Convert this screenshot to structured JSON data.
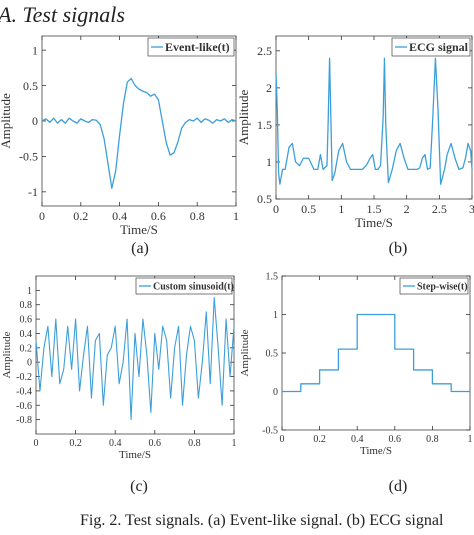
{
  "section_title": "A.  Test signals",
  "caption": "Fig. 2.   Test signals. (a) Event-like signal. (b) ECG signal",
  "colors": {
    "line": "#3d9fd9",
    "axis": "#333333",
    "box": "#444444"
  },
  "panels": [
    {
      "label": "(a)"
    },
    {
      "label": "(b)"
    },
    {
      "label": "(c)"
    },
    {
      "label": "(d)"
    }
  ],
  "chart_data": [
    {
      "type": "line",
      "xlabel": "Time/S",
      "ylabel": "Amplitude",
      "xlim": [
        0,
        1
      ],
      "ylim": [
        -1.2,
        1.2
      ],
      "xticks": [
        "0",
        "0.2",
        "0.4",
        "0.6",
        "0.8",
        "1"
      ],
      "yticks": [
        "-1",
        "-0.5",
        "0",
        "0.5",
        "1"
      ],
      "legend": {
        "position": "top-right",
        "entries": [
          "Event-like(t)"
        ]
      },
      "series": [
        {
          "name": "Event-like(t)",
          "x": [
            0,
            0.02,
            0.04,
            0.06,
            0.08,
            0.1,
            0.12,
            0.14,
            0.16,
            0.18,
            0.2,
            0.22,
            0.24,
            0.26,
            0.28,
            0.3,
            0.32,
            0.34,
            0.36,
            0.38,
            0.4,
            0.42,
            0.44,
            0.46,
            0.48,
            0.5,
            0.52,
            0.54,
            0.56,
            0.58,
            0.6,
            0.62,
            0.64,
            0.66,
            0.68,
            0.7,
            0.72,
            0.74,
            0.76,
            0.78,
            0.8,
            0.82,
            0.84,
            0.86,
            0.88,
            0.9,
            0.92,
            0.94,
            0.96,
            0.98,
            1.0
          ],
          "y": [
            0.0,
            0.03,
            -0.02,
            0.04,
            -0.03,
            0.02,
            -0.03,
            0.04,
            0.0,
            -0.03,
            0.03,
            0.0,
            -0.02,
            0.02,
            0.01,
            -0.05,
            -0.25,
            -0.6,
            -0.95,
            -0.7,
            -0.2,
            0.25,
            0.55,
            0.6,
            0.5,
            0.45,
            0.42,
            0.4,
            0.35,
            0.38,
            0.3,
            0.0,
            -0.3,
            -0.48,
            -0.45,
            -0.3,
            -0.1,
            -0.02,
            0.02,
            0.0,
            0.04,
            -0.02,
            0.03,
            0.01,
            -0.03,
            0.02,
            0.0,
            0.03,
            -0.02,
            0.02,
            0.0
          ]
        }
      ]
    },
    {
      "type": "line",
      "xlabel": "Time/S",
      "ylabel": "Amplitude",
      "xlim": [
        0,
        3
      ],
      "ylim": [
        0.5,
        2.7
      ],
      "xticks": [
        "0",
        "0.5",
        "1",
        "1.5",
        "2",
        "2.5",
        "3"
      ],
      "yticks": [
        "0.5",
        "1",
        "1.5",
        "2",
        "2.5"
      ],
      "legend": {
        "position": "top-right",
        "entries": [
          "ECG signal"
        ]
      },
      "series": [
        {
          "name": "ECG signal",
          "x": [
            0,
            0.02,
            0.04,
            0.06,
            0.1,
            0.14,
            0.2,
            0.25,
            0.3,
            0.36,
            0.42,
            0.5,
            0.58,
            0.64,
            0.68,
            0.72,
            0.78,
            0.8,
            0.82,
            0.84,
            0.86,
            0.9,
            0.96,
            1.02,
            1.08,
            1.14,
            1.2,
            1.26,
            1.32,
            1.38,
            1.44,
            1.48,
            1.52,
            1.56,
            1.6,
            1.64,
            1.66,
            1.68,
            1.72,
            1.78,
            1.84,
            1.9,
            1.96,
            2.02,
            2.08,
            2.12,
            2.16,
            2.2,
            2.24,
            2.28,
            2.32,
            2.36,
            2.4,
            2.44,
            2.48,
            2.52,
            2.58,
            2.62,
            2.68,
            2.74,
            2.8,
            2.86,
            2.9,
            2.94,
            2.98,
            3.0
          ],
          "y": [
            2.2,
            1.7,
            0.85,
            0.7,
            0.9,
            0.9,
            1.2,
            1.25,
            1.0,
            0.95,
            1.05,
            1.05,
            0.9,
            0.9,
            1.1,
            0.9,
            0.95,
            1.6,
            2.4,
            1.6,
            0.75,
            0.85,
            1.15,
            1.25,
            1.0,
            0.9,
            0.9,
            0.9,
            0.9,
            0.95,
            1.05,
            1.1,
            0.9,
            0.9,
            0.95,
            1.6,
            2.4,
            1.5,
            0.72,
            0.9,
            1.15,
            1.25,
            1.05,
            0.9,
            0.9,
            0.9,
            0.9,
            0.92,
            1.05,
            1.1,
            0.9,
            0.92,
            1.6,
            2.4,
            1.7,
            0.7,
            0.9,
            1.1,
            1.25,
            1.05,
            0.9,
            0.92,
            1.05,
            1.25,
            1.15,
            0.9
          ]
        }
      ]
    },
    {
      "type": "line",
      "xlabel": "Time/S",
      "ylabel": "Amplitude",
      "xlim": [
        0,
        1
      ],
      "ylim": [
        -1.0,
        1.2
      ],
      "xticks": [
        "0",
        "0.2",
        "0.4",
        "0.6",
        "0.8",
        "1"
      ],
      "yticks": [
        "-0.8",
        "-0.6",
        "-0.4",
        "-0.2",
        "0",
        "0.2",
        "0.4",
        "0.6",
        "0.8",
        "1"
      ],
      "legend": {
        "position": "top-right",
        "entries": [
          "Custom sinusoid(t)"
        ]
      },
      "series": [
        {
          "name": "Custom sinusoid(t)",
          "x": [
            0,
            0.02,
            0.04,
            0.06,
            0.08,
            0.1,
            0.12,
            0.14,
            0.16,
            0.18,
            0.2,
            0.22,
            0.24,
            0.26,
            0.28,
            0.3,
            0.32,
            0.34,
            0.36,
            0.38,
            0.4,
            0.42,
            0.44,
            0.46,
            0.48,
            0.5,
            0.52,
            0.54,
            0.56,
            0.58,
            0.6,
            0.62,
            0.64,
            0.66,
            0.68,
            0.7,
            0.72,
            0.74,
            0.76,
            0.78,
            0.8,
            0.82,
            0.84,
            0.86,
            0.88,
            0.9,
            0.92,
            0.94,
            0.96,
            0.98,
            1.0
          ],
          "y": [
            0.3,
            -0.4,
            0.2,
            0.5,
            -0.2,
            0.6,
            -0.3,
            -0.1,
            0.5,
            -0.1,
            0.6,
            -0.4,
            0.1,
            0.5,
            -0.5,
            0.3,
            0.4,
            -0.6,
            0.1,
            0.2,
            0.5,
            -0.3,
            0.0,
            0.6,
            -0.8,
            0.4,
            -0.2,
            0.6,
            0.1,
            -0.7,
            0.4,
            -0.1,
            0.5,
            0.3,
            -0.5,
            0.2,
            0.5,
            -0.6,
            0.1,
            0.5,
            0.3,
            -0.5,
            0.0,
            0.7,
            -0.3,
            0.9,
            0.2,
            -0.6,
            0.6,
            -0.2,
            0.5
          ]
        }
      ]
    },
    {
      "type": "line",
      "xlabel": "Time/S",
      "ylabel": "Amplitude",
      "xlim": [
        0,
        1
      ],
      "ylim": [
        -0.5,
        1.5
      ],
      "xticks": [
        "0",
        "0.2",
        "0.4",
        "0.6",
        "0.8",
        "1"
      ],
      "yticks": [
        "-0.5",
        "0",
        "0.5",
        "1",
        "1.5"
      ],
      "legend": {
        "position": "top-right",
        "entries": [
          "Step-wise(t)"
        ]
      },
      "series": [
        {
          "name": "Step-wise(t)",
          "step": true,
          "x": [
            0,
            0.1,
            0.2,
            0.3,
            0.4,
            0.6,
            0.7,
            0.8,
            0.9,
            1.0
          ],
          "y": [
            0,
            0.1,
            0.28,
            0.55,
            1.0,
            0.55,
            0.28,
            0.1,
            0,
            0
          ]
        }
      ]
    }
  ]
}
